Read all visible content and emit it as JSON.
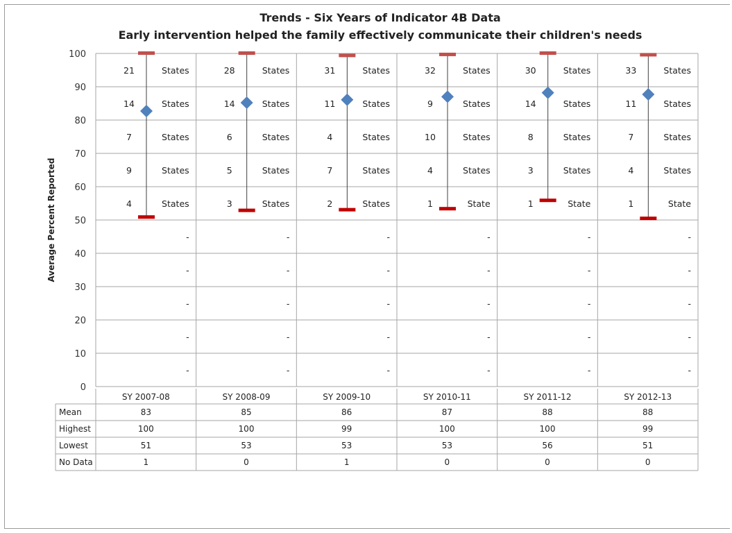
{
  "chart_data": {
    "type": "table",
    "title": "Trends - Six Years of Indicator 4B Data",
    "subtitle": "Early intervention helped the family effectively communicate their children's needs",
    "ylabel": "Average Percent Reported",
    "ylim": [
      0,
      100
    ],
    "yticks": [
      "0",
      "10",
      "20",
      "30",
      "40",
      "50",
      "60",
      "70",
      "80",
      "90",
      "100"
    ],
    "categories": [
      "SY 2007-08",
      "SY 2008-09",
      "SY 2009-10",
      "SY 2010-11",
      "SY 2011-12",
      "SY 2012-13"
    ],
    "series": [
      {
        "name": "Mean",
        "values": [
          83,
          85,
          86,
          87,
          88,
          88
        ]
      },
      {
        "name": "Highest",
        "values": [
          100,
          100,
          99,
          100,
          100,
          99
        ]
      },
      {
        "name": "Lowest",
        "values": [
          51,
          53,
          53,
          53,
          56,
          51
        ]
      },
      {
        "name": "No Data",
        "values": [
          1,
          0,
          1,
          0,
          0,
          0
        ]
      }
    ],
    "display_values": {
      "Mean": [
        "83",
        "85",
        "86",
        "87",
        "88",
        "88"
      ],
      "Highest": [
        "100",
        "100",
        "99",
        "100",
        "100",
        "99"
      ],
      "Lowest": [
        "51",
        "53",
        "53",
        "53",
        "56",
        "51"
      ],
      "No Data": [
        "1",
        "0",
        "1",
        "0",
        "0",
        "0"
      ]
    },
    "plot_values": {
      "mean": [
        82.7,
        85.2,
        86.1,
        87.0,
        88.2,
        87.7
      ],
      "highest": [
        100,
        100,
        99.3,
        99.6,
        100,
        99.5
      ],
      "lowest": [
        51,
        53,
        53.2,
        53.5,
        56,
        50.6
      ]
    },
    "band_labels": [
      [
        {
          "count": "21",
          "unit": "States"
        },
        {
          "count": "14",
          "unit": "States"
        },
        {
          "count": "7",
          "unit": "States"
        },
        {
          "count": "9",
          "unit": "States"
        },
        {
          "count": "4",
          "unit": "States"
        },
        {
          "count": "",
          "unit": "-"
        },
        {
          "count": "",
          "unit": "-"
        },
        {
          "count": "",
          "unit": "-"
        },
        {
          "count": "",
          "unit": "-"
        },
        {
          "count": "",
          "unit": "-"
        }
      ],
      [
        {
          "count": "28",
          "unit": "States"
        },
        {
          "count": "14",
          "unit": "States"
        },
        {
          "count": "6",
          "unit": "States"
        },
        {
          "count": "5",
          "unit": "States"
        },
        {
          "count": "3",
          "unit": "States"
        },
        {
          "count": "",
          "unit": "-"
        },
        {
          "count": "",
          "unit": "-"
        },
        {
          "count": "",
          "unit": "-"
        },
        {
          "count": "",
          "unit": "-"
        },
        {
          "count": "",
          "unit": "-"
        }
      ],
      [
        {
          "count": "31",
          "unit": "States"
        },
        {
          "count": "11",
          "unit": "States"
        },
        {
          "count": "4",
          "unit": "States"
        },
        {
          "count": "7",
          "unit": "States"
        },
        {
          "count": "2",
          "unit": "States"
        },
        {
          "count": "",
          "unit": "-"
        },
        {
          "count": "",
          "unit": "-"
        },
        {
          "count": "",
          "unit": "-"
        },
        {
          "count": "",
          "unit": "-"
        },
        {
          "count": "",
          "unit": "-"
        }
      ],
      [
        {
          "count": "32",
          "unit": "States"
        },
        {
          "count": "9",
          "unit": "States"
        },
        {
          "count": "10",
          "unit": "States"
        },
        {
          "count": "4",
          "unit": "States"
        },
        {
          "count": "1",
          "unit": "State"
        },
        {
          "count": "",
          "unit": "-"
        },
        {
          "count": "",
          "unit": "-"
        },
        {
          "count": "",
          "unit": "-"
        },
        {
          "count": "",
          "unit": "-"
        },
        {
          "count": "",
          "unit": "-"
        }
      ],
      [
        {
          "count": "30",
          "unit": "States"
        },
        {
          "count": "14",
          "unit": "States"
        },
        {
          "count": "8",
          "unit": "States"
        },
        {
          "count": "3",
          "unit": "States"
        },
        {
          "count": "1",
          "unit": "State"
        },
        {
          "count": "",
          "unit": "-"
        },
        {
          "count": "",
          "unit": "-"
        },
        {
          "count": "",
          "unit": "-"
        },
        {
          "count": "",
          "unit": "-"
        },
        {
          "count": "",
          "unit": "-"
        }
      ],
      [
        {
          "count": "33",
          "unit": "States"
        },
        {
          "count": "11",
          "unit": "States"
        },
        {
          "count": "7",
          "unit": "States"
        },
        {
          "count": "4",
          "unit": "States"
        },
        {
          "count": "1",
          "unit": "State"
        },
        {
          "count": "",
          "unit": "-"
        },
        {
          "count": "",
          "unit": "-"
        },
        {
          "count": "",
          "unit": "-"
        },
        {
          "count": "",
          "unit": "-"
        },
        {
          "count": "",
          "unit": "-"
        }
      ]
    ],
    "grid": true,
    "colors": {
      "mean_marker": "#4f81bd",
      "high_low_marker": "#c00000",
      "high_low_marker_light": "#c0504d",
      "gridline": "#a6a6a6",
      "range_line": "#404040"
    }
  }
}
